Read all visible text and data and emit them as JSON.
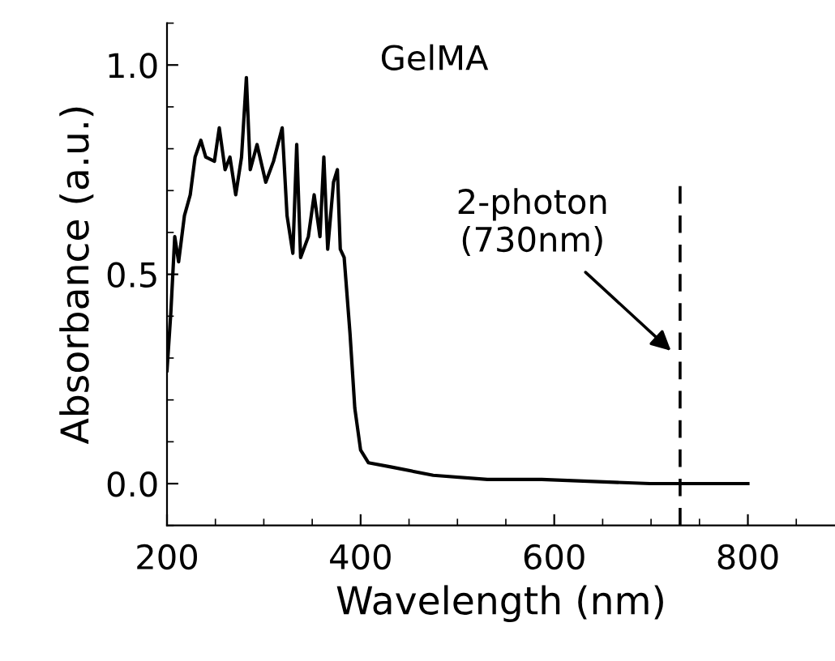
{
  "chart_data": {
    "type": "line",
    "title": "GelMA",
    "xlabel": "Wavelength (nm)",
    "ylabel": "Absorbance (a.u.)",
    "x": [
      200,
      204,
      208,
      212,
      218,
      224,
      229,
      235,
      240,
      249,
      254,
      260,
      265,
      271,
      277,
      282,
      286,
      293,
      302,
      310,
      319,
      324,
      330,
      334,
      338,
      346,
      352,
      358,
      362,
      366,
      372,
      376,
      379,
      383,
      389,
      394,
      400,
      408,
      431,
      475,
      531,
      587,
      699,
      800
    ],
    "series": [
      {
        "color": "#000000",
        "values": [
          0.27,
          0.41,
          0.59,
          0.53,
          0.64,
          0.69,
          0.78,
          0.82,
          0.78,
          0.77,
          0.85,
          0.75,
          0.78,
          0.69,
          0.78,
          0.97,
          0.75,
          0.81,
          0.72,
          0.77,
          0.85,
          0.64,
          0.55,
          0.81,
          0.54,
          0.59,
          0.69,
          0.59,
          0.78,
          0.56,
          0.72,
          0.75,
          0.56,
          0.54,
          0.36,
          0.18,
          0.08,
          0.05,
          0.04,
          0.02,
          0.01,
          0.01,
          0.0,
          0.0
        ]
      }
    ],
    "xlim": [
      200,
      890
    ],
    "xticks": [
      200,
      400,
      600,
      800
    ],
    "ylim": [
      -0.1,
      1.1
    ],
    "yticks": [
      {
        "value": 0,
        "label": "0.0"
      },
      0.5,
      {
        "value": 1.0,
        "label": "1.0"
      }
    ],
    "ref_lines": [
      {
        "axis": "x",
        "value": 730,
        "color": "#000000",
        "line_style": "dashed"
      }
    ],
    "annotations": [
      {
        "text": "2-photon\n(730nm)",
        "x": 724,
        "y": 0.31
      }
    ],
    "grid": false,
    "legend": false,
    "marker": "none",
    "line_style": "solid"
  }
}
